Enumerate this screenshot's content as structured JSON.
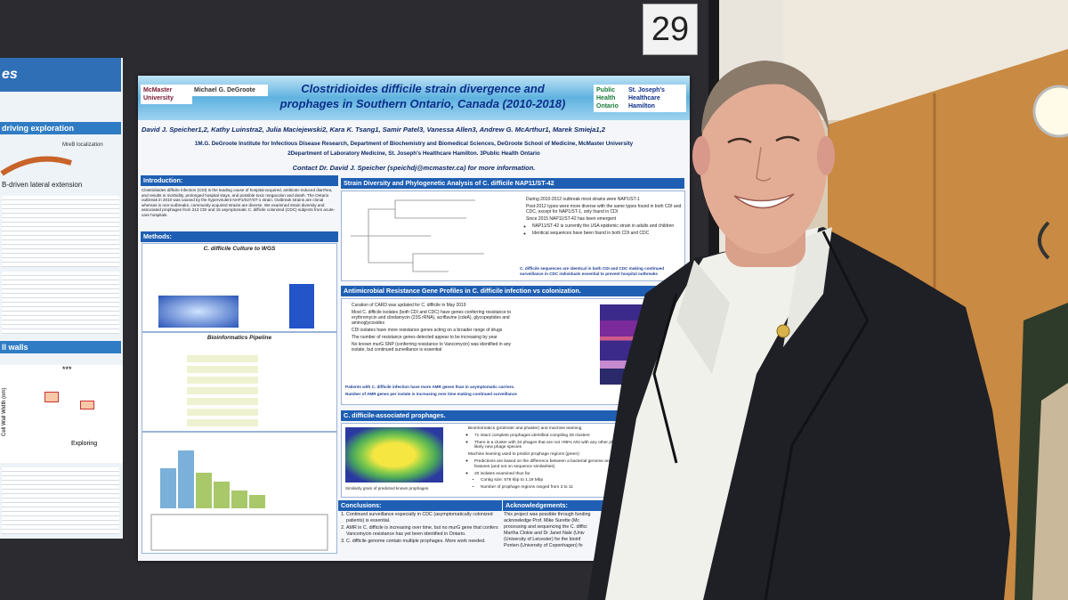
{
  "board_number": "29",
  "left_poster": {
    "title_fragment": "es",
    "headings": [
      "driving exploration",
      "B-driven lateral extension",
      "ll walls"
    ],
    "figure_label": "MreB localization",
    "axis_label": "Cell Wall Width (nm)",
    "significance": "***",
    "group_label": "Exploring"
  },
  "poster": {
    "title_lines": [
      "Clostridioides difficile strain divergence and",
      "prophages in Southern Ontario, Canada (2010-2018)"
    ],
    "logos_left": [
      "McMaster University",
      "Michael G. DeGroote"
    ],
    "logos_right": [
      "Public Health Ontario",
      "St. Joseph's Healthcare Hamilton"
    ],
    "authors": "David J. Speicher1,2, Kathy Luinstra2, Julia Maciejewski2, Kara K. Tsang1, Samir Patel3, Vanessa Allen3, Andrew G. McArthur1, Marek Smieja1,2",
    "affiliations": [
      "1M.G. DeGroote Institute for Infectious Disease Research, Department of Biochemistry and Biomedical Sciences, DeGroote School of Medicine, McMaster University",
      "2Department of Laboratory Medicine, St. Joseph's Healthcare Hamilton.  3Public Health Ontario"
    ],
    "contact": "Contact Dr. David J. Speicher (speichdj@mcmaster.ca) for more information.",
    "introduction": {
      "heading": "Introduction:",
      "text": "Clostridioides difficile infection (CDI) is the leading cause of hospital-acquired, antibiotic-induced diarrhea, and results in morbidity, prolonged hospital stays, and possible toxic megacolon and death. The Ontario outbreak in 2010 was caused by the hypervirulent NAP1/027/ST-1 strain. Outbreak strains are clonal whereas in non-outbreaks, community acquired strains are diverse. We examined strain diversity and associated prophages from 213 CDI and 15 asymptomatic C. difficile colonized (CDC) subjects from acute-care hospitals."
    },
    "methods": {
      "heading": "Methods:",
      "subheadings": [
        "C. difficile Culture to WGS",
        "Bioinformatics Pipeline"
      ]
    },
    "strain": {
      "heading": "Strain Diversity and Phylogenetic Analysis of C. difficile NAP11/ST-42",
      "bullets": [
        "During 2010-2012 outbreak most strains were NAP1/ST-1",
        "Post-2012 types were more diverse with the same types found in both CDI and CDC, except for NAP1/ST-1, only found in CDI",
        "Since 2015 NAP11/ST-42 has been emergent"
      ],
      "sub_bullets": [
        "NAP11/ST-42 is currently the USA epidemic strain in adults and children",
        "Identical sequences have been found in both CDI and CDC"
      ],
      "note": "C. difficile sequences are identical in both CDI and CDC making continued surveillance in CDC individuals essential to prevent hospital outbreaks"
    },
    "amr": {
      "heading": "Antimicrobial Resistance Gene Profiles in C. difficile infection vs colonization.",
      "bullets": [
        "Curation of CARD was updated for C. difficile in May 2019",
        "Most C. difficile isolates (both CDI and CDC) have genes conferring resistance to erythromycin and clindamycin (23S rRNA), acriflavine (cdeA), glycopeptides and aminoglycosides",
        "CDI isolates have more resistance genes acting on a broader range of drugs",
        "The number of resistance genes detected appear to be increasing by year",
        "No known murG SNP (conferring resistance to Vancomycin) was identified in any isolate, but continued surveillance is essential"
      ],
      "notes": [
        "Patients with C. difficile infection have more AMR genes than in asymptomatic carriers.",
        "Number of AMR genes per isolate is increasing over time making continued surveillance essential."
      ]
    },
    "prophages": {
      "heading": "C. difficile-associated prophages.",
      "bullets": [
        "Bioinformatics (profinder and phaster) and machine learning",
        "71 intact complete prophages identified compiling 28 clusters",
        "There is a cluster with 34 phages that are not >95% ANI with any other phage in NCBI. This therefore is a likely new phage species",
        "Machine learning used to predict prophage regions (green)",
        "Predictions are based on the difference between a bacterial genome and a phage region, based on genomic features (and not on sequence similarities)",
        "20 isolates examined thus far",
        "Contig size: 578 kbp to 1.19 Mbp",
        "Number of prophage regions ranged from 3 to 11"
      ],
      "caption": "Similarity gram of predicted known prophages."
    },
    "conclusions": {
      "heading": "Conclusions:",
      "items": [
        "Continued surveillance especially in CDC (asymptomatically colonized patients) is essential.",
        "AMR in C. difficile is increasing over time, but no murG gene that confers Vancomycin resistance has yet been identified in Ontario.",
        "C. difficile genome contain multiple prophages. More work needed."
      ]
    },
    "acknowledgements": {
      "heading": "Acknowledgements:",
      "lines": [
        "This project was possible through funding",
        "acknowledge Prof. Mike Surette (Mc",
        "processing and sequencing the C. diffici",
        "Martha Clokie and Dr Janet Nale (Univ",
        "(University of Leicester) for the bioinf",
        "Ponten (University of Copenhagen) fo"
      ]
    }
  }
}
